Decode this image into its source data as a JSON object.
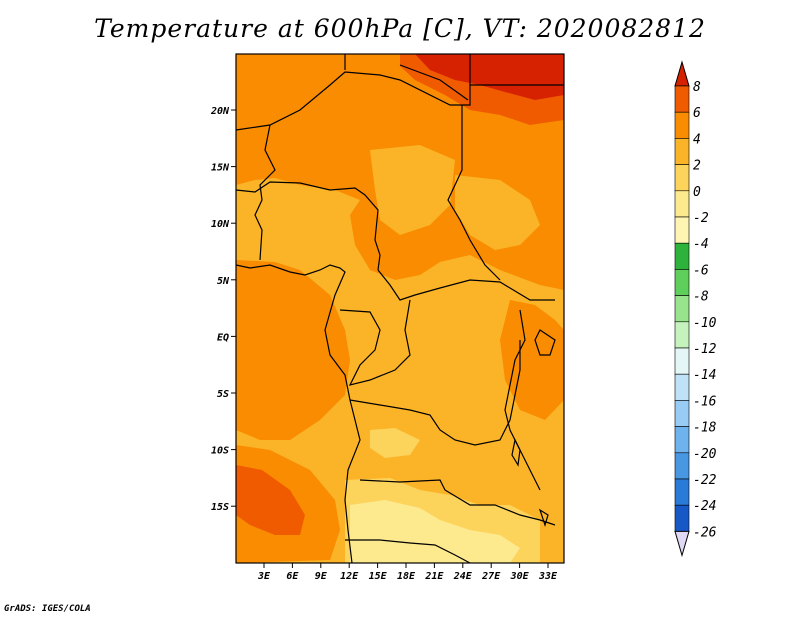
{
  "title": "Temperature at 600hPa [C], VT: 2020082812",
  "credit": "GrADS: IGES/COLA",
  "map": {
    "lon_ticks": [
      "3E",
      "6E",
      "9E",
      "12E",
      "15E",
      "18E",
      "21E",
      "24E",
      "27E",
      "30E",
      "33E"
    ],
    "lat_ticks": [
      "20N",
      "15N",
      "10N",
      "5N",
      "EQ",
      "5S",
      "10S",
      "15S"
    ]
  },
  "colorbar": {
    "levels": [
      "8",
      "6",
      "4",
      "2",
      "0",
      "-2",
      "-4",
      "-6",
      "-8",
      "-10",
      "-12",
      "-14",
      "-16",
      "-18",
      "-20",
      "-22",
      "-24",
      "-26"
    ],
    "colors": [
      "#d62200",
      "#f05b00",
      "#f98c00",
      "#fbb427",
      "#fcd35b",
      "#fde98e",
      "#fff5b3",
      "#2db33b",
      "#5ecf5a",
      "#98e48d",
      "#c6f2bd",
      "#e4f6f6",
      "#c0e2f8",
      "#98ccf4",
      "#6eb2ee",
      "#4897e3",
      "#2a7ad7",
      "#1758c7",
      "#0a3baa",
      "#0a1f7a",
      "#dfd9f5"
    ]
  },
  "chart_data": {
    "type": "heatmap",
    "title": "Temperature at 600hPa [C], VT: 2020082812",
    "variable": "Temperature at 600hPa",
    "unit": "C",
    "valid_time": "2020082812",
    "x_ticks": [
      "3E",
      "6E",
      "9E",
      "12E",
      "15E",
      "18E",
      "21E",
      "24E",
      "27E",
      "30E",
      "33E"
    ],
    "y_ticks": [
      "20N",
      "15N",
      "10N",
      "5N",
      "EQ",
      "5S",
      "10S",
      "15S"
    ],
    "color_levels": [
      8,
      6,
      4,
      2,
      0,
      -2,
      -4,
      -6,
      -8,
      -10,
      -12,
      -14,
      -16,
      -18,
      -20,
      -22,
      -24,
      -26
    ]
  }
}
